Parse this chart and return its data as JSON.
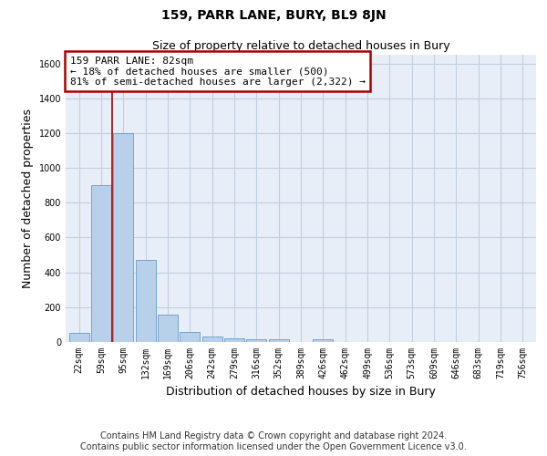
{
  "title": "159, PARR LANE, BURY, BL9 8JN",
  "subtitle": "Size of property relative to detached houses in Bury",
  "xlabel": "Distribution of detached houses by size in Bury",
  "ylabel": "Number of detached properties",
  "footer_line1": "Contains HM Land Registry data © Crown copyright and database right 2024.",
  "footer_line2": "Contains public sector information licensed under the Open Government Licence v3.0.",
  "categories": [
    "22sqm",
    "59sqm",
    "95sqm",
    "132sqm",
    "169sqm",
    "206sqm",
    "242sqm",
    "279sqm",
    "316sqm",
    "352sqm",
    "389sqm",
    "426sqm",
    "462sqm",
    "499sqm",
    "536sqm",
    "573sqm",
    "609sqm",
    "646sqm",
    "683sqm",
    "719sqm",
    "756sqm"
  ],
  "values": [
    55,
    900,
    1200,
    470,
    155,
    58,
    30,
    20,
    15,
    15,
    0,
    15,
    0,
    0,
    0,
    0,
    0,
    0,
    0,
    0,
    0
  ],
  "bar_color": "#b8d0ea",
  "bar_edge_color": "#6699cc",
  "vline_x": 1.5,
  "vline_color": "#aa0000",
  "annotation_text": "159 PARR LANE: 82sqm\n← 18% of detached houses are smaller (500)\n81% of semi-detached houses are larger (2,322) →",
  "annotation_box_color": "#ffffff",
  "annotation_box_edge_color": "#aa0000",
  "ylim": [
    0,
    1650
  ],
  "yticks": [
    0,
    200,
    400,
    600,
    800,
    1000,
    1200,
    1400,
    1600
  ],
  "grid_color": "#c0cfe0",
  "bg_color": "#e8eef8",
  "title_fontsize": 10,
  "subtitle_fontsize": 9,
  "axis_label_fontsize": 9,
  "tick_fontsize": 7,
  "footer_fontsize": 7,
  "annotation_fontsize": 8
}
